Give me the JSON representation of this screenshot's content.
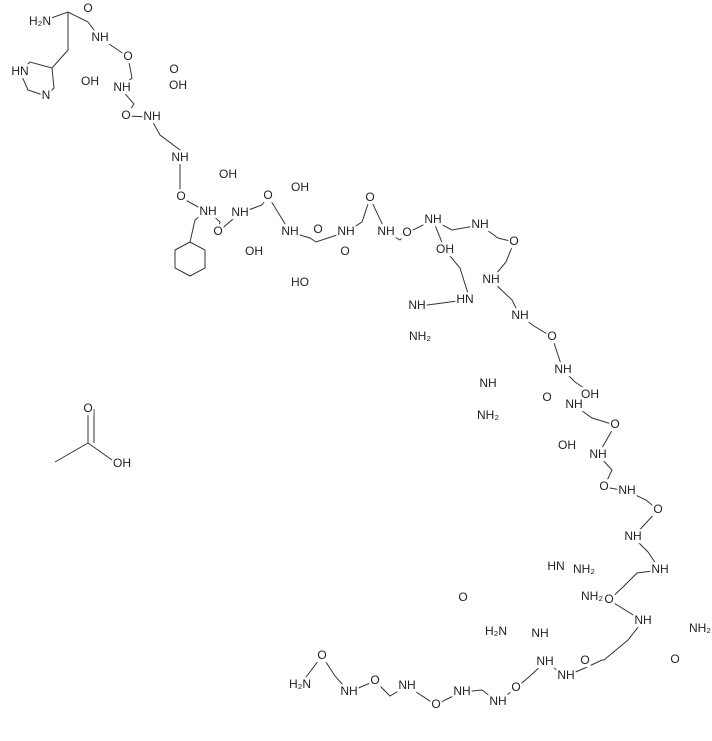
{
  "labels": [
    "H₂N",
    "O",
    "NH",
    "HN",
    "N",
    "OH",
    "O",
    "NH",
    "O",
    "OH",
    "O",
    "NH",
    "OH",
    "O",
    "NH",
    "NH",
    "O",
    "O",
    "OH",
    "NH",
    "O",
    "OH",
    "NH",
    "O",
    "NH",
    "O",
    "NH",
    "OH",
    "NH",
    "O",
    "NH",
    "NH",
    "NH₂",
    "HO",
    "O",
    "NH",
    "O",
    "NH",
    "OH",
    "O",
    "NH",
    "O",
    "OH",
    "NH",
    "O",
    "NH",
    "O",
    "NH",
    "NH",
    "NH₂",
    "HN",
    "NH₂",
    "O",
    "NH",
    "NH₂",
    "O",
    "NH",
    "NH₂",
    "HN",
    "H₂N",
    "NH",
    "O",
    "NH",
    "O",
    "NH",
    "O",
    "NH",
    "O",
    "NH",
    "O",
    "NH",
    "O",
    "H₂N",
    "NH",
    "NH",
    "O",
    "OH"
  ]
}
